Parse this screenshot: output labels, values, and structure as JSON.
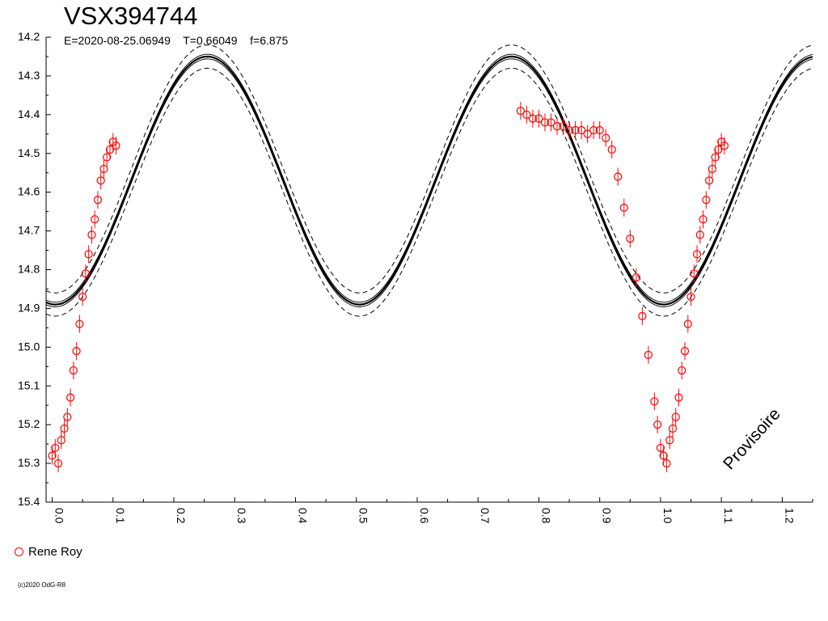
{
  "chart_data": {
    "type": "scatter",
    "title": "VSX394744",
    "subtitle": "E=2020-08-25.06949    T=0.66049    f=6.875",
    "xlabel": "",
    "ylabel": "",
    "xlim": [
      -0.01,
      1.25
    ],
    "ylim": [
      14.2,
      15.4
    ],
    "y_inverted": true,
    "x_ticks": [
      "0.0",
      "0.1",
      "0.2",
      "0.3",
      "0.4",
      "0.5",
      "0.6",
      "0.7",
      "0.8",
      "0.9",
      "1.0",
      "1.1",
      "1.2"
    ],
    "y_ticks": [
      "14.2",
      "14.3",
      "14.4",
      "14.5",
      "14.6",
      "14.7",
      "14.8",
      "14.9",
      "15.0",
      "15.1",
      "15.2",
      "15.3",
      "15.4"
    ],
    "grid": false,
    "legend_position": "bottom-left",
    "series": [
      {
        "name": "Rene Roy",
        "color": "#ff0000",
        "marker": "open-circle",
        "points": [
          [
            0.0,
            15.28
          ],
          [
            0.005,
            15.26
          ],
          [
            0.01,
            15.3
          ],
          [
            0.015,
            15.24
          ],
          [
            0.02,
            15.21
          ],
          [
            0.025,
            15.18
          ],
          [
            0.03,
            15.13
          ],
          [
            0.035,
            15.06
          ],
          [
            0.04,
            15.01
          ],
          [
            0.045,
            14.94
          ],
          [
            0.05,
            14.87
          ],
          [
            0.055,
            14.81
          ],
          [
            0.06,
            14.76
          ],
          [
            0.065,
            14.71
          ],
          [
            0.07,
            14.67
          ],
          [
            0.075,
            14.62
          ],
          [
            0.08,
            14.57
          ],
          [
            0.085,
            14.54
          ],
          [
            0.09,
            14.51
          ],
          [
            0.095,
            14.49
          ],
          [
            0.1,
            14.47
          ],
          [
            0.105,
            14.48
          ],
          [
            0.77,
            14.39
          ],
          [
            0.78,
            14.4
          ],
          [
            0.79,
            14.41
          ],
          [
            0.8,
            14.41
          ],
          [
            0.81,
            14.42
          ],
          [
            0.82,
            14.42
          ],
          [
            0.83,
            14.43
          ],
          [
            0.84,
            14.43
          ],
          [
            0.85,
            14.44
          ],
          [
            0.86,
            14.44
          ],
          [
            0.87,
            14.44
          ],
          [
            0.88,
            14.45
          ],
          [
            0.89,
            14.44
          ],
          [
            0.9,
            14.44
          ],
          [
            0.91,
            14.46
          ],
          [
            0.92,
            14.49
          ],
          [
            0.93,
            14.56
          ],
          [
            0.94,
            14.64
          ],
          [
            0.95,
            14.72
          ],
          [
            0.96,
            14.82
          ],
          [
            0.97,
            14.92
          ],
          [
            0.98,
            15.02
          ],
          [
            0.99,
            15.14
          ],
          [
            0.995,
            15.2
          ],
          [
            1.0,
            15.26
          ],
          [
            1.005,
            15.28
          ],
          [
            1.01,
            15.3
          ],
          [
            1.015,
            15.24
          ],
          [
            1.02,
            15.21
          ],
          [
            1.025,
            15.18
          ],
          [
            1.03,
            15.13
          ],
          [
            1.035,
            15.06
          ],
          [
            1.04,
            15.01
          ],
          [
            1.045,
            14.94
          ],
          [
            1.05,
            14.87
          ],
          [
            1.055,
            14.81
          ],
          [
            1.06,
            14.76
          ],
          [
            1.065,
            14.71
          ],
          [
            1.07,
            14.67
          ],
          [
            1.075,
            14.62
          ],
          [
            1.08,
            14.57
          ],
          [
            1.085,
            14.54
          ],
          [
            1.09,
            14.51
          ],
          [
            1.095,
            14.49
          ],
          [
            1.1,
            14.47
          ],
          [
            1.105,
            14.48
          ]
        ]
      }
    ],
    "fit": {
      "mean": 14.57,
      "amplitude": 0.32,
      "maximum_phase": 0.255,
      "harmonic": 2,
      "envelope": 0.03
    }
  },
  "legend_label": "Rene Roy",
  "stamp": "Provisoire",
  "credit": "(c)2020 OdG-R8"
}
